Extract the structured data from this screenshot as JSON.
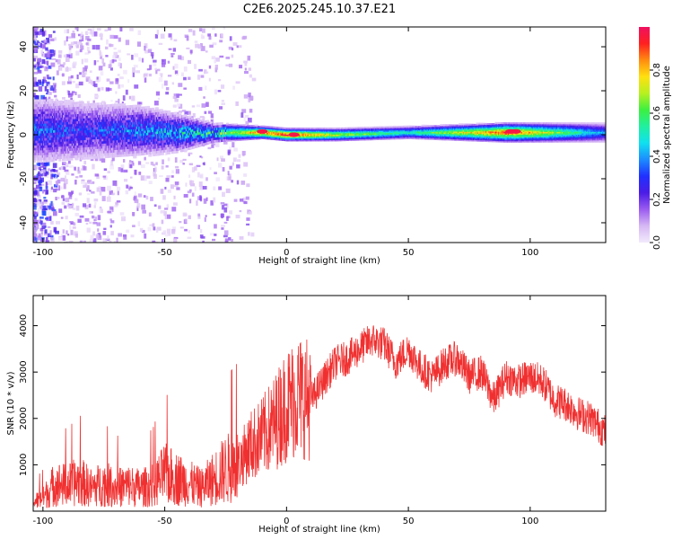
{
  "title": "C2E6.2025.245.10.37.E21",
  "chart_data": [
    {
      "type": "heatmap",
      "title": "",
      "xlabel": "Height of straight line (km)",
      "ylabel": "Frequency (Hz)",
      "xlim": [
        -104,
        131
      ],
      "ylim": [
        -49,
        49
      ],
      "xticks": [
        -100,
        -50,
        0,
        50,
        100
      ],
      "yticks": [
        -40,
        -20,
        0,
        20,
        40
      ],
      "colorbar": {
        "label": "Normalized spectral amplitude",
        "range": [
          0,
          1
        ],
        "ticks": [
          0.0,
          0.2,
          0.4,
          0.6,
          0.8
        ],
        "colors": [
          "#f2eafc",
          "#d6b8f4",
          "#9b5cf0",
          "#4b1ce6",
          "#2030ff",
          "#1c8cff",
          "#10e0f0",
          "#20f0a0",
          "#3cf040",
          "#b8f020",
          "#ffe010",
          "#ff8c10",
          "#ff2020",
          "#f01060"
        ]
      },
      "band": [
        {
          "x": -100,
          "center_hz": 2,
          "halfwidth_hz": 10,
          "peak": 0.35
        },
        {
          "x": -80,
          "center_hz": 2,
          "halfwidth_hz": 9,
          "peak": 0.3
        },
        {
          "x": -60,
          "center_hz": 2,
          "halfwidth_hz": 8,
          "peak": 0.38
        },
        {
          "x": -45,
          "center_hz": 1,
          "halfwidth_hz": 6,
          "peak": 0.45
        },
        {
          "x": -30,
          "center_hz": 1,
          "halfwidth_hz": 3,
          "peak": 0.55
        },
        {
          "x": -10,
          "center_hz": 1,
          "halfwidth_hz": 2,
          "peak": 0.9
        },
        {
          "x": 0,
          "center_hz": 0,
          "halfwidth_hz": 2,
          "peak": 1.0
        },
        {
          "x": 20,
          "center_hz": 0,
          "halfwidth_hz": 2,
          "peak": 0.75
        },
        {
          "x": 50,
          "center_hz": 1,
          "halfwidth_hz": 2,
          "peak": 0.55
        },
        {
          "x": 90,
          "center_hz": 1,
          "halfwidth_hz": 3,
          "peak": 0.95
        },
        {
          "x": 131,
          "center_hz": 1,
          "halfwidth_hz": 3,
          "peak": 0.4
        }
      ]
    },
    {
      "type": "line",
      "title": "",
      "xlabel": "Height of straight line (km)",
      "ylabel": "SNR (10 * v/v)",
      "xlim": [
        -104,
        131
      ],
      "ylim": [
        0,
        4650
      ],
      "xticks": [
        -100,
        -50,
        0,
        50,
        100
      ],
      "yticks": [
        1000,
        2000,
        3000,
        4000
      ],
      "color": "#f03030",
      "series": [
        {
          "name": "SNR",
          "x": [
            -104,
            -100,
            -95,
            -90,
            -85,
            -80,
            -75,
            -70,
            -65,
            -60,
            -55,
            -50,
            -45,
            -40,
            -35,
            -30,
            -25,
            -20,
            -15,
            -10,
            -5,
            0,
            5,
            10,
            15,
            20,
            25,
            30,
            35,
            40,
            45,
            50,
            55,
            60,
            65,
            70,
            75,
            80,
            85,
            90,
            95,
            100,
            105,
            110,
            115,
            120,
            125,
            131
          ],
          "values": [
            200,
            280,
            600,
            550,
            650,
            500,
            600,
            500,
            550,
            500,
            550,
            800,
            700,
            600,
            500,
            700,
            900,
            1000,
            1400,
            1600,
            1900,
            2300,
            2500,
            2400,
            2800,
            3200,
            3300,
            3500,
            3700,
            3600,
            3200,
            3500,
            3100,
            2900,
            3200,
            3300,
            2900,
            3000,
            2400,
            2900,
            2800,
            2900,
            2800,
            2400,
            2300,
            2100,
            2000,
            1700
          ]
        }
      ]
    }
  ]
}
